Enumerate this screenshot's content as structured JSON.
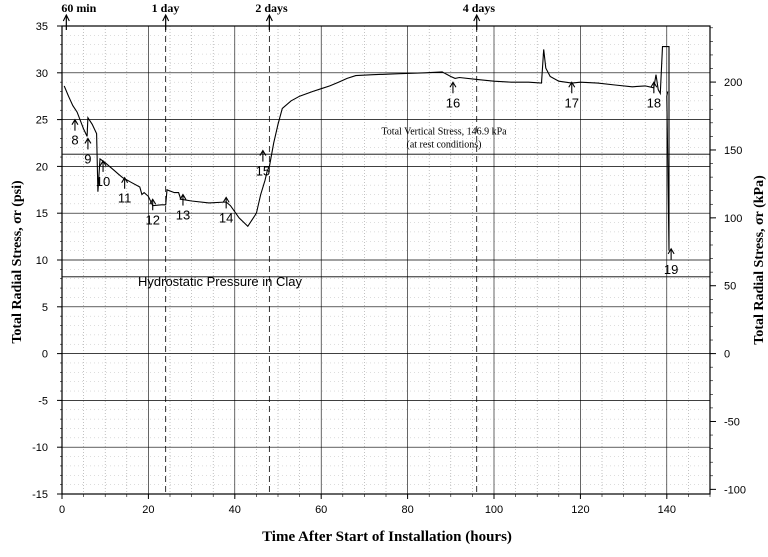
{
  "chart_data": {
    "type": "line",
    "title": "",
    "xlabel": "Time After Start of Installation (hours)",
    "ylabel_left": "Total Radial Stress, σr (psi)",
    "ylabel_right": "Total Radial Stress, σr (kPa)",
    "xlim": [
      0,
      150
    ],
    "ylim_left": [
      -15,
      35
    ],
    "ylim_right_kPa": [
      -100,
      240
    ],
    "x_ticks": [
      "0",
      "20",
      "40",
      "60",
      "80",
      "100",
      "120",
      "140"
    ],
    "y_ticks_left": [
      "-15",
      "-10",
      "-5",
      "0",
      "5",
      "10",
      "15",
      "20",
      "25",
      "30",
      "35"
    ],
    "y_ticks_right": [
      "-100",
      "-50",
      "0",
      "50",
      "100",
      "150",
      "200"
    ],
    "top_time_markers": [
      {
        "label": "60 min",
        "x": 1
      },
      {
        "label": "1 day",
        "x": 24
      },
      {
        "label": "2 days",
        "x": 48
      },
      {
        "label": "4 days",
        "x": 96
      }
    ],
    "reference_lines": [
      {
        "label": "Total Vertical Stress, 146.9 kPa",
        "sublabel": "(at rest conditions)",
        "y": 21.3
      },
      {
        "label": "Hydrostatic Pressure in Clay",
        "y": 8.2
      }
    ],
    "series": [
      {
        "points": [
          [
            0.5,
            28.6
          ],
          [
            1.5,
            27.5
          ],
          [
            2.5,
            26.5
          ],
          [
            3.5,
            25.8
          ],
          [
            5,
            24
          ],
          [
            5.8,
            23.2
          ],
          [
            6,
            25.2
          ],
          [
            7,
            24.5
          ],
          [
            8,
            23.5
          ],
          [
            8.3,
            17.3
          ],
          [
            8.8,
            20.8
          ],
          [
            10,
            20.4
          ],
          [
            11,
            20
          ],
          [
            12,
            19.6
          ],
          [
            13,
            19.2
          ],
          [
            14,
            18.8
          ],
          [
            16,
            18.3
          ],
          [
            18,
            17.8
          ],
          [
            18.5,
            17
          ],
          [
            19,
            17.2
          ],
          [
            20,
            16.8
          ],
          [
            21,
            15.8
          ],
          [
            23,
            15.9
          ],
          [
            24,
            15.9
          ],
          [
            24.3,
            17.5
          ],
          [
            26,
            17.2
          ],
          [
            27,
            17.2
          ],
          [
            27.5,
            16.5
          ],
          [
            30,
            16.3
          ],
          [
            34,
            16.1
          ],
          [
            38,
            16.2
          ],
          [
            39,
            15.8
          ],
          [
            41,
            14.5
          ],
          [
            43,
            13.6
          ],
          [
            45,
            15
          ],
          [
            46,
            17
          ],
          [
            47,
            18.5
          ],
          [
            47.5,
            19.5
          ],
          [
            48,
            20
          ],
          [
            49,
            22.5
          ],
          [
            50,
            24.5
          ],
          [
            51,
            26.2
          ],
          [
            53,
            27
          ],
          [
            55,
            27.5
          ],
          [
            58,
            28
          ],
          [
            60,
            28.3
          ],
          [
            62,
            28.6
          ],
          [
            64,
            29
          ],
          [
            66,
            29.4
          ],
          [
            68,
            29.7
          ],
          [
            72,
            29.8
          ],
          [
            78,
            29.9
          ],
          [
            84,
            30
          ],
          [
            88,
            30.1
          ],
          [
            90,
            29.6
          ],
          [
            91,
            29.4
          ],
          [
            92,
            29.5
          ],
          [
            96,
            29.3
          ],
          [
            100,
            29.1
          ],
          [
            104,
            29
          ],
          [
            108,
            29
          ],
          [
            111,
            28.9
          ],
          [
            111.5,
            32.5
          ],
          [
            112,
            30.5
          ],
          [
            113,
            29.6
          ],
          [
            115,
            29.1
          ],
          [
            118,
            28.9
          ],
          [
            120,
            29
          ],
          [
            124,
            28.9
          ],
          [
            128,
            28.7
          ],
          [
            132,
            28.5
          ],
          [
            135,
            28.6
          ],
          [
            137,
            28.4
          ],
          [
            137.5,
            29.8
          ],
          [
            138,
            28.2
          ],
          [
            138.5,
            27.8
          ],
          [
            139,
            32.8
          ],
          [
            140.5,
            32.8
          ],
          [
            140.5,
            11
          ],
          [
            140,
            27.5
          ],
          [
            140.2,
            28
          ]
        ]
      }
    ],
    "annotations": [
      {
        "label": "8",
        "x": 3,
        "y": 23.6
      },
      {
        "label": "9",
        "x": 6,
        "y": 21.6
      },
      {
        "label": "10",
        "x": 9.5,
        "y": 19.2
      },
      {
        "label": "11",
        "x": 14.5,
        "y": 17.4
      },
      {
        "label": "12",
        "x": 21,
        "y": 15.1
      },
      {
        "label": "13",
        "x": 28,
        "y": 15.6
      },
      {
        "label": "14",
        "x": 38,
        "y": 15.3
      },
      {
        "label": "15",
        "x": 46.5,
        "y": 20.3
      },
      {
        "label": "16",
        "x": 90.5,
        "y": 27.6
      },
      {
        "label": "17",
        "x": 118,
        "y": 27.6
      },
      {
        "label": "18",
        "x": 137,
        "y": 27.6
      },
      {
        "label": "19",
        "x": 141,
        "y": 9.8
      }
    ]
  }
}
